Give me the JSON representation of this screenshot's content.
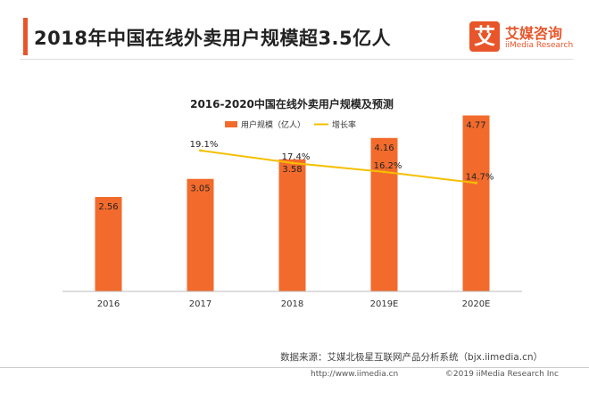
{
  "header": {
    "title": "2018年中国在线外卖用户规模超3.5亿人",
    "logo_mark": "艾",
    "logo_cn": "艾媒咨询",
    "logo_en": "iiMedia Research"
  },
  "chart_data": {
    "type": "bar",
    "title": "2016-2020中国在线外卖用户规模及预测",
    "categories": [
      "2016",
      "2017",
      "2018",
      "2019E",
      "2020E"
    ],
    "series": [
      {
        "name": "用户规模（亿人）",
        "type": "bar",
        "values": [
          2.56,
          3.05,
          3.58,
          4.16,
          4.77
        ],
        "labels": [
          "2.56",
          "3.05",
          "3.58",
          "4.16",
          "4.77"
        ],
        "color": "#f26b2c"
      },
      {
        "name": "增长率",
        "type": "line",
        "values": [
          null,
          19.1,
          17.4,
          16.2,
          14.7
        ],
        "labels": [
          "",
          "19.1%",
          "17.4%",
          "16.2%",
          "14.7%"
        ],
        "color": "#f5c000"
      }
    ],
    "ylim_left": [
      0,
      5
    ],
    "ylim_right": [
      0,
      25
    ],
    "legend_position": "top-center",
    "grid": false
  },
  "footer": {
    "source": "数据来源：艾媒北极星互联网产品分析系统（bjx.iimedia.cn）",
    "website": "http://www.iimedia.cn",
    "copyright": "©2019 iiMedia Research Inc"
  }
}
